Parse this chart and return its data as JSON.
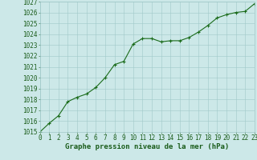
{
  "x": [
    0,
    1,
    2,
    3,
    4,
    5,
    6,
    7,
    8,
    9,
    10,
    11,
    12,
    13,
    14,
    15,
    16,
    17,
    18,
    19,
    20,
    21,
    22,
    23
  ],
  "y": [
    1015.0,
    1015.8,
    1016.5,
    1017.8,
    1018.2,
    1018.5,
    1019.1,
    1020.0,
    1021.2,
    1021.5,
    1023.1,
    1023.6,
    1023.6,
    1023.3,
    1023.4,
    1023.4,
    1023.7,
    1024.2,
    1024.8,
    1025.5,
    1025.8,
    1026.0,
    1026.1,
    1026.8
  ],
  "ylim": [
    1015,
    1027
  ],
  "xlim": [
    0,
    23
  ],
  "yticks": [
    1015,
    1016,
    1017,
    1018,
    1019,
    1020,
    1021,
    1022,
    1023,
    1024,
    1025,
    1026,
    1027
  ],
  "xticks": [
    0,
    1,
    2,
    3,
    4,
    5,
    6,
    7,
    8,
    9,
    10,
    11,
    12,
    13,
    14,
    15,
    16,
    17,
    18,
    19,
    20,
    21,
    22,
    23
  ],
  "line_color": "#1a6b1a",
  "marker": "+",
  "bg_color": "#cce8e8",
  "grid_color": "#a0c8c8",
  "xlabel": "Graphe pression niveau de la mer (hPa)",
  "xlabel_color": "#1a5c1a",
  "tick_color": "#1a5c1a",
  "axis_label_fontsize": 6.5,
  "tick_fontsize": 5.5
}
